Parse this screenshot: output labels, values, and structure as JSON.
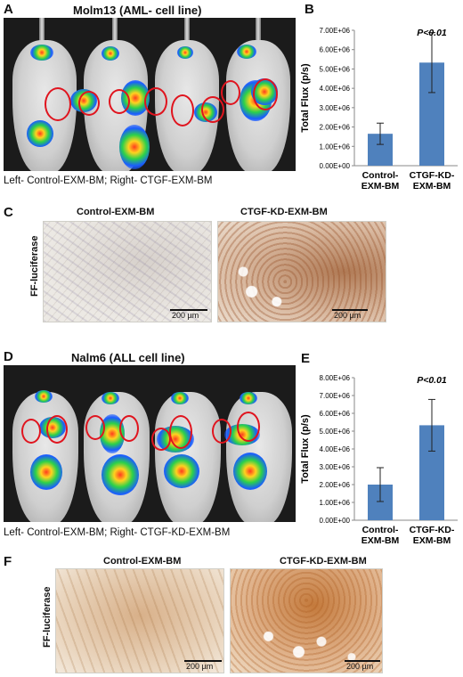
{
  "panels": {
    "a": {
      "letter": "A",
      "title": "Molm13 (AML- cell line)",
      "caption": "Left- Control-EXM-BM;  Right- CTGF-EXM-BM"
    },
    "b": {
      "letter": "B"
    },
    "c": {
      "letter": "C",
      "row_label": "FF-luciferase",
      "left_title": "Control-EXM-BM",
      "right_title": "CTGF-KD-EXM-BM",
      "scale_left": "200 µm",
      "scale_right": "200 µm"
    },
    "d": {
      "letter": "D",
      "title": "Nalm6 (ALL cell line)",
      "caption": "Left- Control-EXM-BM;  Right- CTGF-KD-EXM-BM"
    },
    "e": {
      "letter": "E"
    },
    "f": {
      "letter": "F",
      "row_label": "FF-luciferase",
      "left_title": "Control-EXM-BM",
      "right_title": "CTGF-KD-EXM-BM",
      "scale_left": "200 µm",
      "scale_right": "200 µm"
    }
  },
  "colors": {
    "bar": "#4f81bd",
    "roi": "#e0141e"
  },
  "chart_data": [
    {
      "panel": "B",
      "type": "bar",
      "categories": [
        "Control-\nEXM-BM",
        "CTGF-KD-\nEXM-BM"
      ],
      "values": [
        1650000,
        5330000
      ],
      "errors": [
        550000,
        1550000
      ],
      "ylabel": "Total Flux (p/s)",
      "ylim": [
        0,
        7000000
      ],
      "yticks": [
        "0.00E+00",
        "1.00E+06",
        "2.00E+06",
        "3.00E+06",
        "4.00E+06",
        "5.00E+06",
        "6.00E+06",
        "7.00E+06"
      ],
      "annotation": "P<0.01",
      "grid": false
    },
    {
      "panel": "E",
      "type": "bar",
      "categories": [
        "Control-\nEXM-BM",
        "CTGF-KD-\nEXM-BM"
      ],
      "values": [
        2000000,
        5330000
      ],
      "errors": [
        950000,
        1450000
      ],
      "ylabel": "Total Flux (p/s)",
      "ylim": [
        0,
        8000000
      ],
      "yticks": [
        "0.00E+00",
        "1.00E+06",
        "2.00E+06",
        "3.00E+06",
        "4.00E+06",
        "5.00E+06",
        "6.00E+06",
        "7.00E+06",
        "8.00E+06"
      ],
      "annotation": "P<0.01",
      "grid": false
    }
  ]
}
